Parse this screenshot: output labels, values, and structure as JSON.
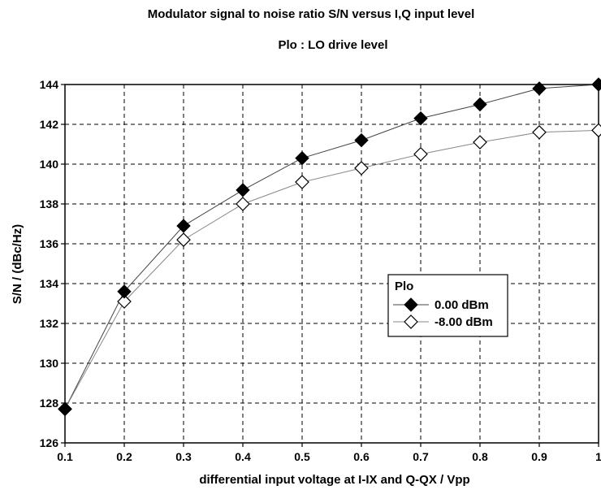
{
  "chart_data": {
    "type": "line",
    "title": "Modulator signal to noise ratio S/N versus I,Q input level",
    "subtitle": "Plo : LO drive level",
    "xlabel": "differential input voltage at I-IX and Q-QX / Vpp",
    "ylabel": "S/N / (dBc/Hz)",
    "x": [
      0.1,
      0.2,
      0.3,
      0.4,
      0.5,
      0.6,
      0.7,
      0.8,
      0.9,
      1.0
    ],
    "xlim": [
      0.1,
      1.0
    ],
    "ylim": [
      126,
      144
    ],
    "x_ticks": [
      "0.1",
      "0.2",
      "0.3",
      "0.4",
      "0.5",
      "0.6",
      "0.7",
      "0.8",
      "0.9",
      "1"
    ],
    "y_ticks": [
      "126",
      "128",
      "130",
      "132",
      "134",
      "136",
      "138",
      "140",
      "142",
      "144"
    ],
    "grid": true,
    "legend": {
      "title": "Plo",
      "placement": "center-right"
    },
    "series": [
      {
        "name": "0.00 dBm",
        "marker": "filled-diamond",
        "color": "#000000",
        "line_color": "#444444",
        "values": [
          127.7,
          133.6,
          136.9,
          138.7,
          140.3,
          141.2,
          142.3,
          143.0,
          143.8,
          144.0
        ]
      },
      {
        "name": "-8.00 dBm",
        "marker": "open-diamond",
        "color": "#000000",
        "line_color": "#888888",
        "values": [
          127.7,
          133.1,
          136.2,
          138.0,
          139.1,
          139.8,
          140.5,
          141.1,
          141.6,
          141.7
        ]
      }
    ]
  }
}
